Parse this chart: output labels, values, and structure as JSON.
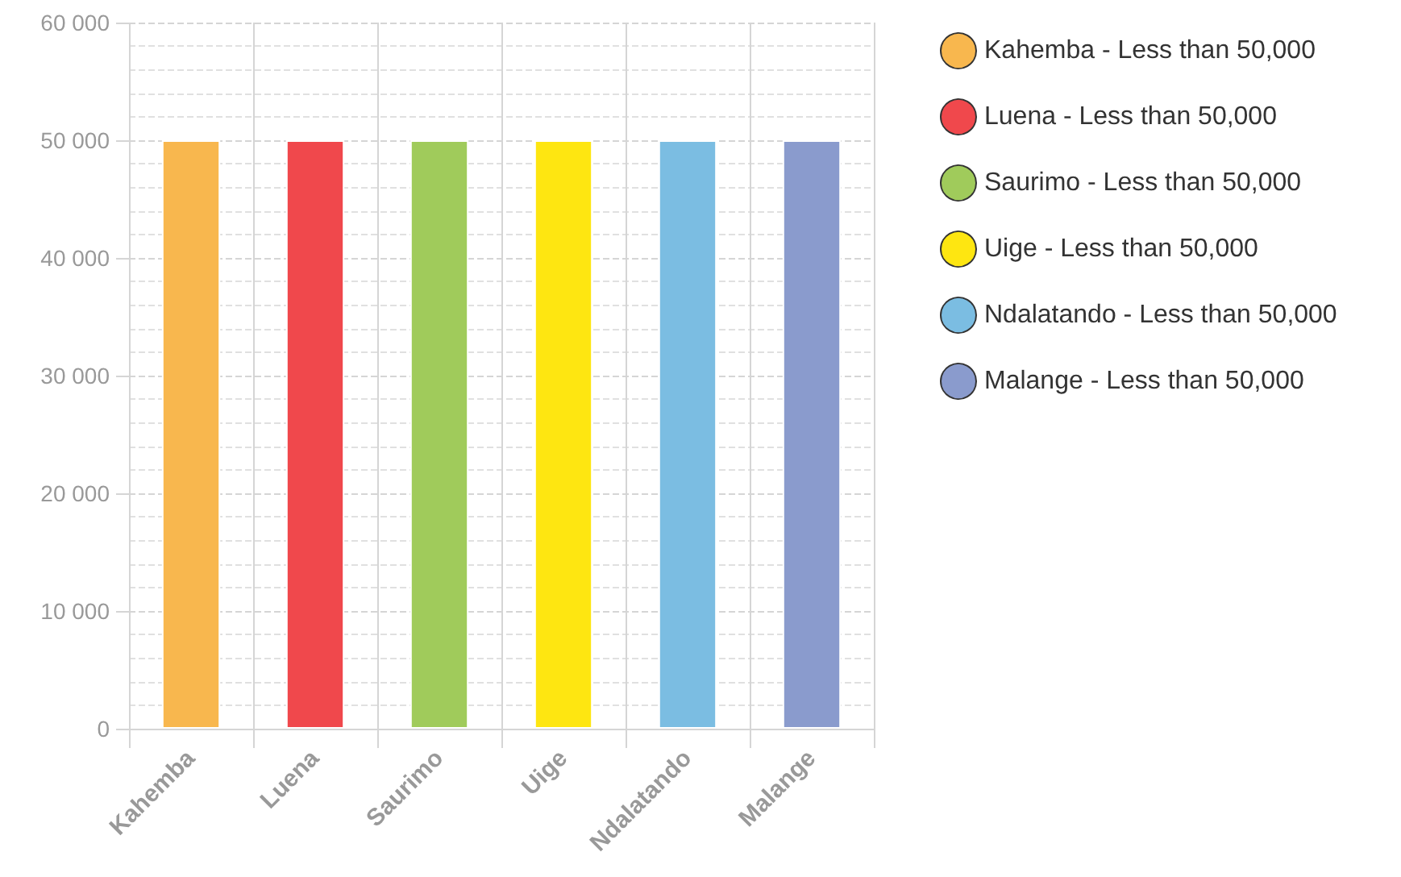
{
  "chart_data": {
    "type": "bar",
    "stacked": true,
    "grid": true,
    "legend": "right",
    "categories": [
      "Kahemba",
      "Luena",
      "Saurimo",
      "Uige",
      "Ndalatando",
      "Malange"
    ],
    "series": [
      {
        "name": "Kahemba - Less than 50,000",
        "color": "#f8b74e",
        "values": [
          50000,
          null,
          null,
          null,
          null,
          null
        ]
      },
      {
        "name": "Luena - Less than 50,000",
        "color": "#f0484c",
        "values": [
          null,
          50000,
          null,
          null,
          null,
          null
        ]
      },
      {
        "name": "Saurimo - Less than 50,000",
        "color": "#a0cb5b",
        "values": [
          null,
          null,
          50000,
          null,
          null,
          null
        ]
      },
      {
        "name": "Uige - Less than 50,000",
        "color": "#fee611",
        "values": [
          null,
          null,
          null,
          50000,
          null,
          null
        ]
      },
      {
        "name": "Ndalatando - Less than 50,000",
        "color": "#7bbde2",
        "values": [
          null,
          null,
          null,
          null,
          50000,
          null
        ]
      },
      {
        "name": "Malange - Less than 50,000",
        "color": "#8a9bcd",
        "values": [
          null,
          null,
          null,
          null,
          null,
          50000
        ]
      }
    ],
    "ylim": [
      0,
      60000
    ],
    "yticks": [
      0,
      {
        "value": 10000,
        "label": "10 000"
      },
      {
        "value": 20000,
        "label": "20 000"
      },
      {
        "value": 30000,
        "label": "30 000"
      },
      {
        "value": 40000,
        "label": "40 000"
      },
      {
        "value": 50000,
        "label": "50 000"
      },
      {
        "value": 60000,
        "label": "60 000"
      }
    ]
  }
}
